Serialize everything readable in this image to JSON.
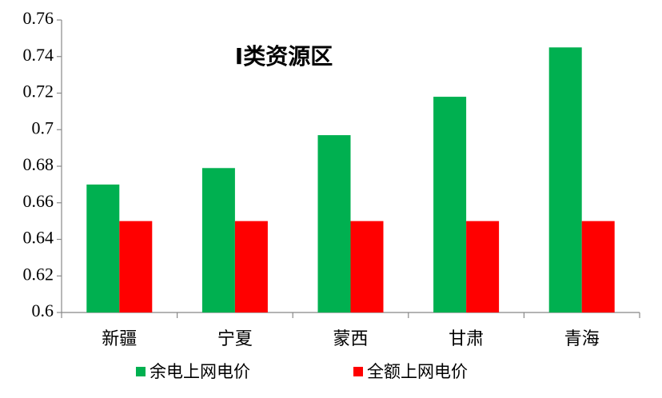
{
  "chart_data": {
    "type": "bar",
    "title": "Ⅰ类资源区",
    "categories": [
      "新疆",
      "宁夏",
      "蒙西",
      "甘肃",
      "青海"
    ],
    "series": [
      {
        "name": "余电上网电价",
        "color": "#00b050",
        "values": [
          0.67,
          0.679,
          0.697,
          0.718,
          0.745
        ]
      },
      {
        "name": "全额上网电价",
        "color": "#ff0000",
        "values": [
          0.65,
          0.65,
          0.65,
          0.65,
          0.65
        ]
      }
    ],
    "ylim": [
      0.6,
      0.76
    ],
    "yticks": [
      0.6,
      0.62,
      0.64,
      0.66,
      0.68,
      0.7,
      0.72,
      0.74,
      0.76
    ],
    "grid": false,
    "legend": "bottom"
  }
}
